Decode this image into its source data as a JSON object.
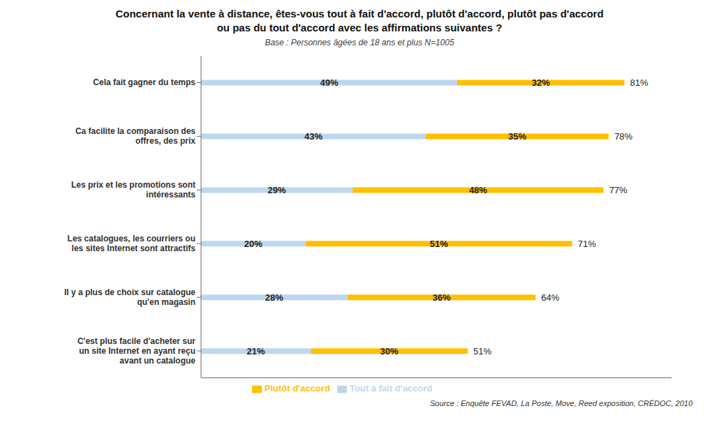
{
  "chart_data": {
    "type": "bar",
    "orientation": "horizontal",
    "stacked": true,
    "data_labels": true,
    "title": "Concernant la vente à distance, êtes-vous tout à fait d'accord, plutôt d'accord, plutôt pas d'accord\nou pas du tout d'accord avec les affirmations suivantes ?",
    "subtitle": "Base : Personnes âgées de 18 ans et plus N=1005",
    "annotations": [
      "Source : Enquête FEVAD, La Poste, Move, Reed exposition, CRÉDOC, 2010"
    ],
    "categories": [
      "Cela fait gagner du temps",
      "Ca facilite la comparaison des\noffres, des prix",
      "Les prix et les promotions sont\nintéressants",
      "Les catalogues, les courriers ou\nles sites Internet sont attractifs",
      "Il y a plus de choix sur catalogue\nqu'en magasin",
      "C'est plus facile d'acheter sur\nun site Internet en ayant reçu\navant un catalogue"
    ],
    "series": [
      {
        "name": "Tout à fait d'accord",
        "color": "#BDD7EE",
        "values": [
          49,
          43,
          29,
          20,
          28,
          21
        ],
        "value_labels": [
          "49%",
          "43%",
          "29%",
          "20%",
          "28%",
          "21%"
        ]
      },
      {
        "name": "Plutôt d'accord",
        "color": "#FFC000",
        "values": [
          32,
          35,
          48,
          51,
          36,
          30
        ],
        "value_labels": [
          "32%",
          "35%",
          "48%",
          "51%",
          "36%",
          "30%"
        ]
      }
    ],
    "totals": [
      81,
      78,
      77,
      71,
      64,
      51
    ],
    "total_labels": [
      "81%",
      "78%",
      "77%",
      "71%",
      "64%",
      "51%"
    ],
    "xlim": [
      0,
      90
    ],
    "xticks": [],
    "tick_labels": "y",
    "grid": false,
    "legend": "bottom"
  }
}
